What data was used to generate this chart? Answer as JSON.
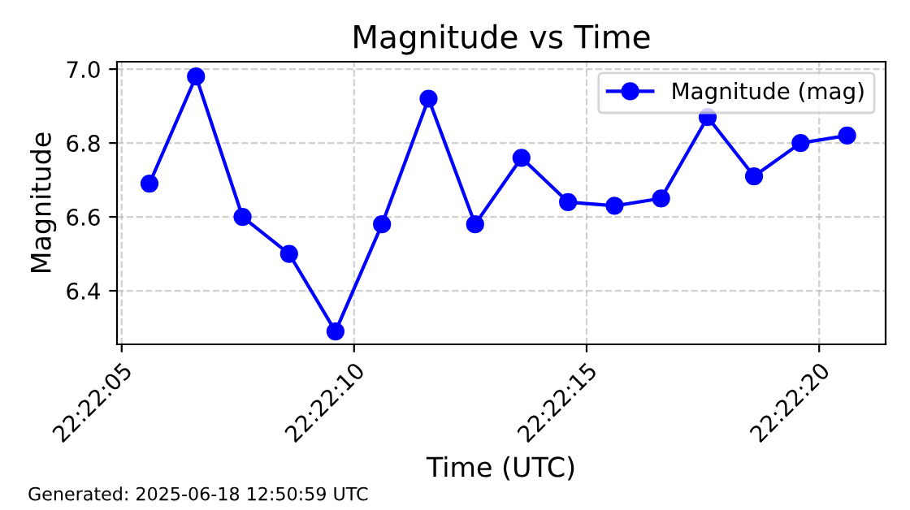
{
  "chart_data": {
    "type": "line",
    "title": "Magnitude vs Time",
    "xlabel": "Time (UTC)",
    "ylabel": "Magnitude",
    "annotations": [
      "Generated: 2025-06-18 12:50:59 UTC"
    ],
    "x": [
      22.368222,
      22.3685,
      22.368778,
      22.369056,
      22.369333,
      22.369611,
      22.369889,
      22.370167,
      22.370444,
      22.370722,
      22.371,
      22.371278,
      22.371556,
      22.371833,
      22.372111,
      22.372389
    ],
    "series": [
      {
        "name": "Magnitude (mag)",
        "color": "#0000ff",
        "values": [
          6.69,
          6.98,
          6.6,
          6.5,
          6.29,
          6.58,
          6.92,
          6.58,
          6.76,
          6.64,
          6.63,
          6.65,
          6.87,
          6.71,
          6.8,
          6.82
        ]
      }
    ],
    "xlim": [
      22.368028,
      22.372619
    ],
    "xticks": [
      {
        "value": 22.368056,
        "label": "22:22:05"
      },
      {
        "value": 22.369444,
        "label": "22:22:10"
      },
      {
        "value": 22.370833,
        "label": "22:22:15"
      },
      {
        "value": 22.372222,
        "label": "22:22:20"
      }
    ],
    "ylim": [
      6.255,
      7.02
    ],
    "yticks": [
      {
        "value": 6.4,
        "label": "6.4"
      },
      {
        "value": 6.6,
        "label": "6.6"
      },
      {
        "value": 6.8,
        "label": "6.8"
      },
      {
        "value": 7.0,
        "label": "7.0"
      }
    ],
    "grid": true,
    "legend": "top right",
    "marker": "circle",
    "line_style": "solid"
  }
}
